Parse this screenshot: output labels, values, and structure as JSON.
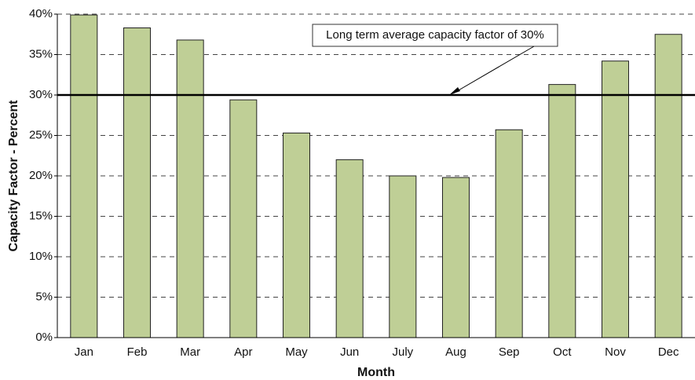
{
  "chart_data": {
    "type": "bar",
    "xlabel": "Month",
    "ylabel": "Capacity Factor - Percent",
    "categories": [
      "Jan",
      "Feb",
      "Mar",
      "Apr",
      "May",
      "Jun",
      "July",
      "Aug",
      "Sep",
      "Oct",
      "Nov",
      "Dec"
    ],
    "values": [
      39.9,
      38.3,
      36.8,
      29.4,
      25.3,
      22.0,
      20.0,
      19.8,
      25.7,
      31.3,
      34.2,
      37.5
    ],
    "color": "#bfcf96",
    "ylim": [
      0,
      40
    ],
    "yticks": [
      {
        "value": 0,
        "label": "0%"
      },
      {
        "value": 5,
        "label": "5%"
      },
      {
        "value": 10,
        "label": "10%"
      },
      {
        "value": 15,
        "label": "15%"
      },
      {
        "value": 20,
        "label": "20%"
      },
      {
        "value": 25,
        "label": "25%"
      },
      {
        "value": 30,
        "label": "30%"
      },
      {
        "value": 35,
        "label": "35%"
      },
      {
        "value": 40,
        "label": "40%"
      }
    ],
    "grid": true,
    "reference_line": {
      "value": 30,
      "annotation": "Long term average capacity factor of 30%"
    }
  }
}
